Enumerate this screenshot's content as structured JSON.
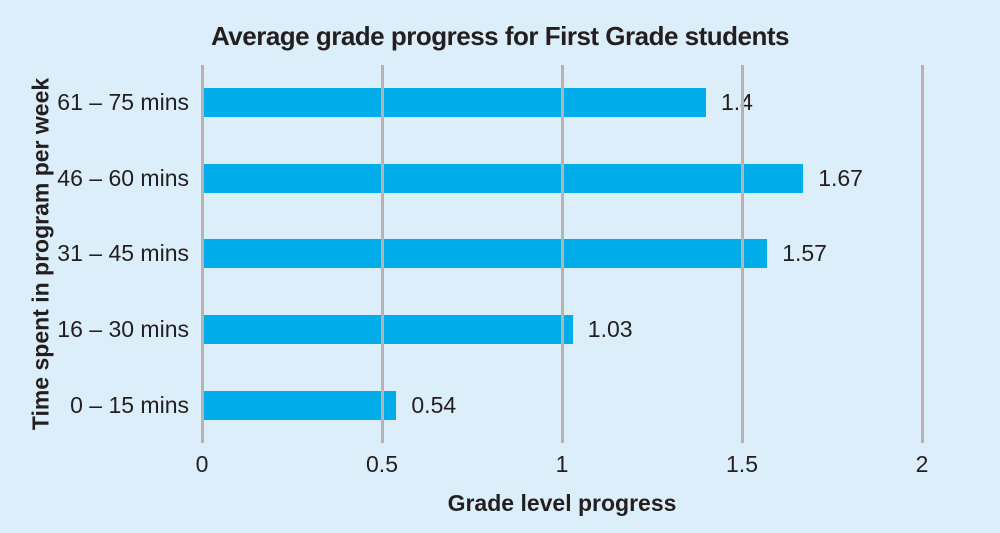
{
  "colors": {
    "background": "#DCEEFA",
    "bar": "#00ADEB",
    "gridline": "#B4B4B4",
    "text": "#231F20"
  },
  "chart_data": {
    "type": "bar",
    "orientation": "horizontal",
    "title": "Average grade progress for First Grade students",
    "xlabel": "Grade level progress",
    "ylabel": "Time spent in program per week",
    "categories": [
      "61 – 75 mins",
      "46 – 60 mins",
      "31 – 45 mins",
      "16 – 30 mins",
      "0 – 15 mins"
    ],
    "values": [
      1.4,
      1.67,
      1.57,
      1.03,
      0.54
    ],
    "value_labels": [
      "1.4",
      "1.67",
      "1.57",
      "1.03",
      "0.54"
    ],
    "xlim": [
      0,
      2
    ],
    "xticks": [
      0,
      0.5,
      1,
      1.5,
      2
    ],
    "xtick_labels": [
      "0",
      "0.5",
      "1",
      "1.5",
      "2"
    ],
    "grid": "vertical-gridlines-over-bars",
    "legend": "none"
  }
}
